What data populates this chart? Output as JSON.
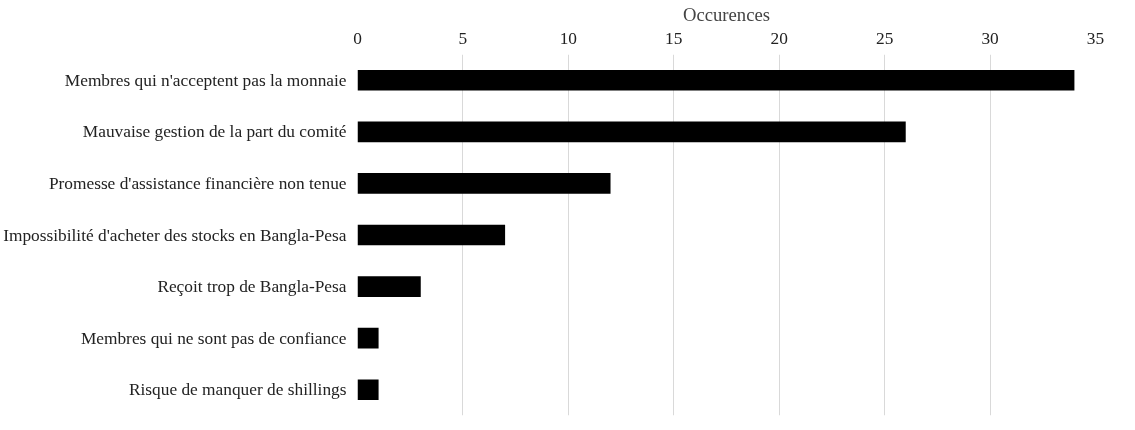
{
  "chart_data": {
    "type": "bar",
    "orientation": "horizontal",
    "xlabel": "Occurences",
    "categories": [
      "Membres qui n'acceptent pas la monnaie",
      "Mauvaise gestion de la part du comité",
      "Promesse d'assistance financière non tenue",
      "Impossibilité d'acheter des stocks en Bangla-Pesa",
      "Reçoit trop de Bangla-Pesa",
      "Membres qui ne sont pas de confiance",
      "Risque de manquer de shillings"
    ],
    "values": [
      34,
      26,
      12,
      7,
      3,
      1,
      1
    ],
    "color": "#000000",
    "xlim": [
      0,
      35
    ],
    "xticks": [
      0,
      5,
      10,
      15,
      20,
      25,
      30,
      35
    ],
    "grid": "x"
  }
}
